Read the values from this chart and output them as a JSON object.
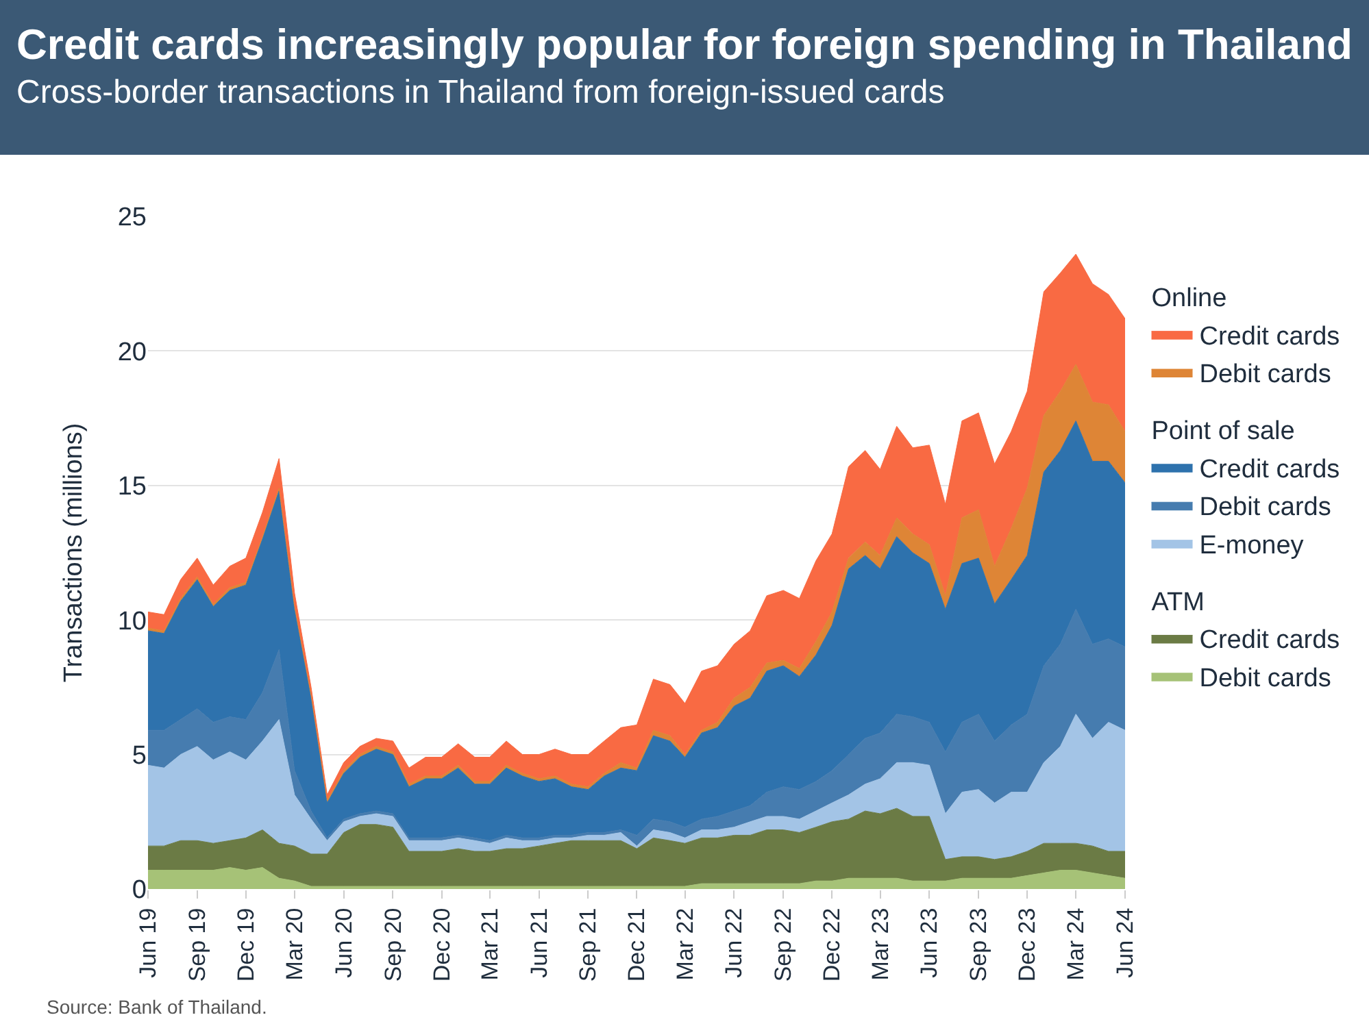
{
  "chart_data": {
    "type": "area",
    "stacked": true,
    "title": "Credit cards increasingly popular for foreign spending in Thailand",
    "subtitle": "Cross-border transactions in Thailand from foreign-issued cards",
    "ylabel": "Transactions (millions)",
    "x": [
      "2019-06",
      "2019-07",
      "2019-08",
      "2019-09",
      "2019-10",
      "2019-11",
      "2019-12",
      "2020-01",
      "2020-02",
      "2020-03",
      "2020-04",
      "2020-05",
      "2020-06",
      "2020-07",
      "2020-08",
      "2020-09",
      "2020-10",
      "2020-11",
      "2020-12",
      "2021-01",
      "2021-02",
      "2021-03",
      "2021-04",
      "2021-05",
      "2021-06",
      "2021-07",
      "2021-08",
      "2021-09",
      "2021-10",
      "2021-11",
      "2021-12",
      "2022-01",
      "2022-02",
      "2022-03",
      "2022-04",
      "2022-05",
      "2022-06",
      "2022-07",
      "2022-08",
      "2022-09",
      "2022-10",
      "2022-11",
      "2022-12",
      "2023-01",
      "2023-02",
      "2023-03",
      "2023-04",
      "2023-05",
      "2023-06",
      "2023-07",
      "2023-08",
      "2023-09",
      "2023-10",
      "2023-11",
      "2023-12",
      "2024-01",
      "2024-02",
      "2024-03",
      "2024-04",
      "2024-05",
      "2024-06"
    ],
    "xlim": [
      "2019-06",
      "2024-06"
    ],
    "xticks": [
      {
        "value": "2019-06",
        "label": "Jun 19"
      },
      {
        "value": "2019-09",
        "label": "Sep 19"
      },
      {
        "value": "2019-12",
        "label": "Dec 19"
      },
      {
        "value": "2020-03",
        "label": "Mar 20"
      },
      {
        "value": "2020-06",
        "label": "Jun 20"
      },
      {
        "value": "2020-09",
        "label": "Sep 20"
      },
      {
        "value": "2020-12",
        "label": "Dec 20"
      },
      {
        "value": "2021-03",
        "label": "Mar 21"
      },
      {
        "value": "2021-06",
        "label": "Jun 21"
      },
      {
        "value": "2021-09",
        "label": "Sep 21"
      },
      {
        "value": "2021-12",
        "label": "Dec 21"
      },
      {
        "value": "2022-03",
        "label": "Mar 22"
      },
      {
        "value": "2022-06",
        "label": "Jun 22"
      },
      {
        "value": "2022-09",
        "label": "Sep 22"
      },
      {
        "value": "2022-12",
        "label": "Dec 22"
      },
      {
        "value": "2023-03",
        "label": "Mar 23"
      },
      {
        "value": "2023-06",
        "label": "Jun 23"
      },
      {
        "value": "2023-09",
        "label": "Sep 23"
      },
      {
        "value": "2023-12",
        "label": "Dec 23"
      },
      {
        "value": "2024-03",
        "label": "Mar 24"
      },
      {
        "value": "2024-06",
        "label": "Jun 24"
      }
    ],
    "ylim": [
      0,
      25
    ],
    "yticks": [
      0,
      5,
      10,
      15,
      20,
      25
    ],
    "grid": "y",
    "legend": "right",
    "annotations": [
      "Online",
      "Point of sale",
      "ATM",
      "Source: Bank of Thailand."
    ],
    "series": [
      {
        "name": "Debit cards",
        "color": "#a6c277",
        "values": [
          0.7,
          0.7,
          0.7,
          0.7,
          0.7,
          0.8,
          0.7,
          0.8,
          0.4,
          0.3,
          0.1,
          0.1,
          0.1,
          0.1,
          0.1,
          0.1,
          0.1,
          0.1,
          0.1,
          0.1,
          0.1,
          0.1,
          0.1,
          0.1,
          0.1,
          0.1,
          0.1,
          0.1,
          0.1,
          0.1,
          0.1,
          0.1,
          0.1,
          0.1,
          0.2,
          0.2,
          0.2,
          0.2,
          0.2,
          0.2,
          0.2,
          0.3,
          0.3,
          0.4,
          0.4,
          0.4,
          0.4,
          0.3,
          0.3,
          0.3,
          0.4,
          0.4,
          0.4,
          0.4,
          0.5,
          0.6,
          0.7,
          0.7,
          0.6,
          0.5,
          0.4
        ]
      },
      {
        "name": "Credit cards",
        "color": "#6b7b45",
        "values": [
          0.9,
          0.9,
          1.1,
          1.1,
          1.0,
          1.0,
          1.2,
          1.4,
          1.3,
          1.3,
          1.2,
          1.2,
          2.0,
          2.3,
          2.3,
          2.2,
          1.3,
          1.3,
          1.3,
          1.4,
          1.3,
          1.3,
          1.4,
          1.4,
          1.5,
          1.6,
          1.7,
          1.7,
          1.7,
          1.7,
          1.4,
          1.8,
          1.7,
          1.6,
          1.7,
          1.7,
          1.8,
          1.8,
          2.0,
          2.0,
          1.9,
          2.0,
          2.2,
          2.2,
          2.5,
          2.4,
          2.6,
          2.4,
          2.4,
          0.8,
          0.8,
          0.8,
          0.7,
          0.8,
          0.9,
          1.1,
          1.0,
          1.0,
          1.0,
          0.9,
          1.0
        ]
      },
      {
        "name": "E-money",
        "color": "#a3c4e6",
        "values": [
          3.0,
          2.9,
          3.2,
          3.5,
          3.1,
          3.3,
          2.9,
          3.3,
          4.6,
          1.9,
          1.3,
          0.5,
          0.4,
          0.3,
          0.4,
          0.4,
          0.4,
          0.4,
          0.4,
          0.4,
          0.4,
          0.3,
          0.4,
          0.3,
          0.2,
          0.2,
          0.1,
          0.2,
          0.2,
          0.3,
          0.1,
          0.3,
          0.3,
          0.2,
          0.3,
          0.3,
          0.3,
          0.5,
          0.5,
          0.5,
          0.5,
          0.6,
          0.7,
          0.9,
          1.0,
          1.3,
          1.7,
          2.0,
          1.9,
          1.7,
          2.4,
          2.5,
          2.1,
          2.4,
          2.2,
          3.0,
          3.6,
          4.8,
          4.0,
          4.8,
          4.5
        ]
      },
      {
        "name": "Debit cards",
        "color": "#467caf",
        "values": [
          1.3,
          1.4,
          1.3,
          1.4,
          1.4,
          1.3,
          1.5,
          1.8,
          2.6,
          0.9,
          0.3,
          0.1,
          0.1,
          0.1,
          0.1,
          0.1,
          0.1,
          0.1,
          0.1,
          0.1,
          0.1,
          0.1,
          0.1,
          0.1,
          0.1,
          0.1,
          0.1,
          0.1,
          0.1,
          0.1,
          0.4,
          0.4,
          0.4,
          0.4,
          0.4,
          0.5,
          0.6,
          0.6,
          0.9,
          1.1,
          1.1,
          1.1,
          1.2,
          1.5,
          1.7,
          1.7,
          1.8,
          1.7,
          1.6,
          2.3,
          2.6,
          2.8,
          2.3,
          2.5,
          2.9,
          3.6,
          3.8,
          3.9,
          3.5,
          3.1,
          3.1
        ]
      },
      {
        "name": "Credit cards",
        "color": "#2e72ad",
        "values": [
          3.7,
          3.6,
          4.4,
          4.8,
          4.3,
          4.7,
          5.0,
          5.7,
          5.9,
          6.0,
          4.2,
          1.3,
          1.7,
          2.1,
          2.3,
          2.2,
          1.9,
          2.2,
          2.2,
          2.5,
          2.0,
          2.1,
          2.5,
          2.3,
          2.1,
          2.1,
          1.8,
          1.6,
          2.1,
          2.3,
          2.4,
          3.1,
          3.0,
          2.6,
          3.2,
          3.3,
          3.9,
          4.0,
          4.5,
          4.5,
          4.2,
          4.7,
          5.4,
          6.9,
          6.8,
          6.1,
          6.6,
          6.1,
          5.9,
          5.3,
          5.9,
          5.8,
          5.1,
          5.4,
          5.9,
          7.2,
          7.2,
          7.0,
          6.8,
          6.6,
          6.1
        ]
      },
      {
        "name": "Debit cards",
        "color": "#de8536",
        "values": [
          0.1,
          0.1,
          0.1,
          0.1,
          0.1,
          0.1,
          0.1,
          0.1,
          0.1,
          0.1,
          0.1,
          0.1,
          0.1,
          0.1,
          0.1,
          0.1,
          0.1,
          0.1,
          0.1,
          0.1,
          0.1,
          0.1,
          0.1,
          0.1,
          0.1,
          0.1,
          0.1,
          0.1,
          0.1,
          0.2,
          0.1,
          0.2,
          0.2,
          0.1,
          0.1,
          0.2,
          0.3,
          0.4,
          0.3,
          0.2,
          0.3,
          0.5,
          0.5,
          0.4,
          0.5,
          0.5,
          0.7,
          0.7,
          0.7,
          0.5,
          1.7,
          1.8,
          1.4,
          1.9,
          2.5,
          2.1,
          2.2,
          2.1,
          2.2,
          2.1,
          1.9
        ]
      },
      {
        "name": "Credit cards",
        "color": "#f96a43",
        "values": [
          0.6,
          0.6,
          0.7,
          0.7,
          0.7,
          0.8,
          0.9,
          0.9,
          1.1,
          0.5,
          0.3,
          0.2,
          0.3,
          0.3,
          0.3,
          0.4,
          0.6,
          0.7,
          0.7,
          0.8,
          0.9,
          0.9,
          0.9,
          0.7,
          0.9,
          1.0,
          1.1,
          1.2,
          1.2,
          1.3,
          1.6,
          1.9,
          1.9,
          1.9,
          2.2,
          2.1,
          2.0,
          2.1,
          2.5,
          2.6,
          2.6,
          3.0,
          2.9,
          3.4,
          3.4,
          3.2,
          3.4,
          3.2,
          3.7,
          3.4,
          3.6,
          3.6,
          3.8,
          3.6,
          3.6,
          4.6,
          4.4,
          4.1,
          4.4,
          4.1,
          4.2
        ]
      }
    ]
  }
}
